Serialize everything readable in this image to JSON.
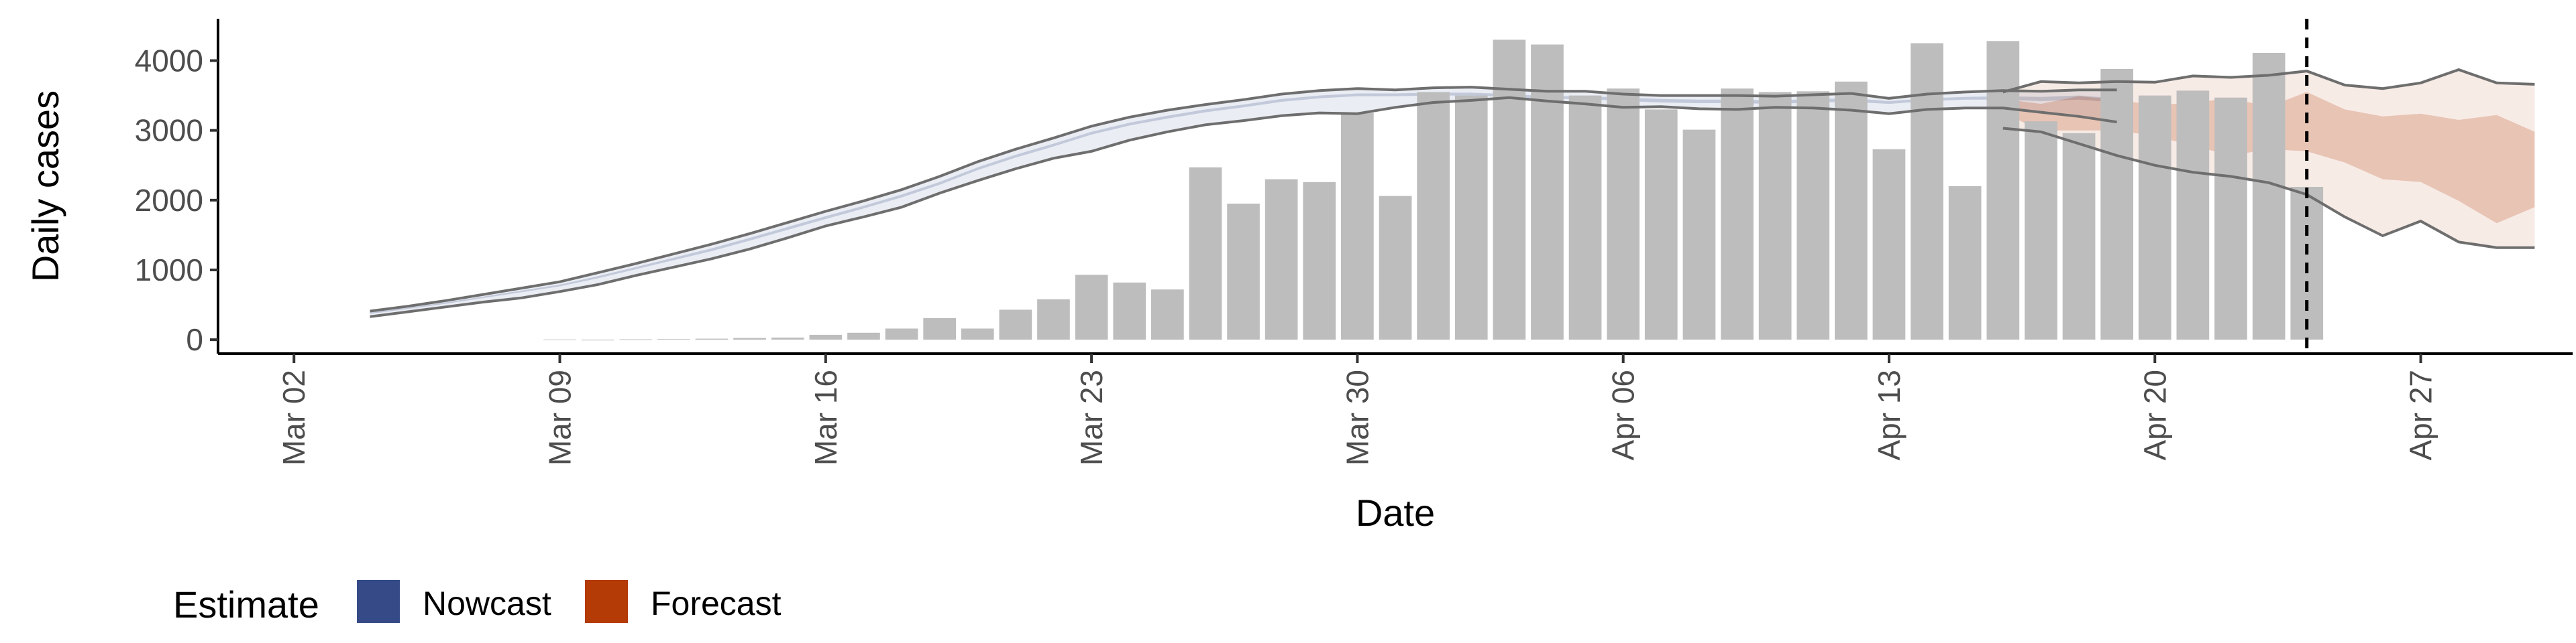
{
  "chart_data": {
    "type": "bar",
    "xlabel": "Date",
    "ylabel": "Daily cases",
    "ylim": [
      -200,
      4600
    ],
    "y_ticks": [
      0,
      1000,
      2000,
      3000,
      4000
    ],
    "x_ticks": [
      "Mar 02",
      "Mar 09",
      "Mar 16",
      "Mar 23",
      "Mar 30",
      "Apr 06",
      "Apr 13",
      "Apr 20",
      "Apr 27"
    ],
    "x_range": [
      "2020-02-29",
      "2020-05-01"
    ],
    "bar_color": "#bdbdbd",
    "reported_cases": {
      "start_date": "2020-03-09",
      "values": [
        2,
        0,
        5,
        10,
        15,
        25,
        30,
        70,
        100,
        160,
        310,
        160,
        430,
        580,
        930,
        820,
        720,
        2470,
        1950,
        2300,
        2260,
        3250,
        2060,
        3550,
        3500,
        4300,
        4230,
        3500,
        3600,
        3300,
        3010,
        3600,
        3550,
        3560,
        3700,
        2730,
        4250,
        2200,
        4280,
        3130,
        2960,
        3880,
        3500,
        3570,
        3470,
        4110,
        2190
      ]
    },
    "series": [
      {
        "name": "Nowcast",
        "color": "#354a86",
        "start_date": "2020-03-04",
        "upper": [
          410,
          480,
          560,
          650,
          740,
          830,
          960,
          1090,
          1230,
          1370,
          1520,
          1680,
          1840,
          1990,
          2150,
          2340,
          2550,
          2730,
          2890,
          3060,
          3190,
          3290,
          3370,
          3440,
          3520,
          3570,
          3600,
          3580,
          3610,
          3620,
          3590,
          3560,
          3560,
          3520,
          3500,
          3500,
          3500,
          3490,
          3510,
          3530,
          3460,
          3520,
          3550,
          3570,
          3560,
          3580,
          3580
        ],
        "inner_upper": [
          390,
          460,
          535,
          620,
          705,
          790,
          910,
          1040,
          1175,
          1310,
          1460,
          1615,
          1770,
          1920,
          2080,
          2260,
          2470,
          2650,
          2810,
          2980,
          3110,
          3210,
          3300,
          3370,
          3450,
          3500,
          3530,
          3530,
          3540,
          3540,
          3520,
          3490,
          3490,
          3470,
          3450,
          3440,
          3440,
          3430,
          3450,
          3460,
          3420,
          3460,
          3480,
          3490,
          3480,
          3500,
          3460
        ],
        "inner_lower": [
          370,
          440,
          515,
          600,
          680,
          765,
          880,
          1010,
          1140,
          1270,
          1420,
          1575,
          1730,
          1880,
          2040,
          2220,
          2430,
          2610,
          2770,
          2940,
          3070,
          3170,
          3260,
          3330,
          3410,
          3460,
          3490,
          3490,
          3500,
          3500,
          3480,
          3450,
          3450,
          3420,
          3400,
          3390,
          3390,
          3380,
          3400,
          3410,
          3380,
          3420,
          3440,
          3440,
          3420,
          3440,
          3400
        ],
        "lower": [
          330,
          400,
          470,
          540,
          600,
          690,
          790,
          920,
          1040,
          1160,
          1300,
          1460,
          1630,
          1760,
          1900,
          2100,
          2280,
          2450,
          2600,
          2700,
          2860,
          2980,
          3080,
          3140,
          3210,
          3250,
          3240,
          3330,
          3400,
          3430,
          3470,
          3420,
          3380,
          3330,
          3340,
          3310,
          3300,
          3330,
          3320,
          3290,
          3240,
          3300,
          3320,
          3320,
          3260,
          3200,
          3120
        ]
      },
      {
        "name": "Forecast",
        "color": "#b43a06",
        "start_date": "2020-04-16",
        "upper": [
          3550,
          3700,
          3680,
          3700,
          3690,
          3780,
          3760,
          3790,
          3850,
          3650,
          3600,
          3680,
          3870,
          3680,
          3660
        ],
        "inner_upper": [
          3450,
          3380,
          3490,
          3440,
          3360,
          3400,
          3460,
          3340,
          3550,
          3300,
          3200,
          3240,
          3150,
          3220,
          2980
        ],
        "inner_lower": [
          3250,
          3000,
          3000,
          3000,
          2920,
          2780,
          2640,
          2730,
          2700,
          2540,
          2300,
          2260,
          1990,
          1670,
          1900
        ],
        "lower": [
          3030,
          2980,
          2810,
          2640,
          2500,
          2400,
          2340,
          2250,
          2080,
          1760,
          1490,
          1700,
          1400,
          1320,
          1320
        ]
      }
    ],
    "forecast_date": "2020-04-24",
    "legend": {
      "title": "Estimate",
      "position": "bottom-left",
      "entries": [
        {
          "label": "Nowcast",
          "color": "#354a86"
        },
        {
          "label": "Forecast",
          "color": "#b43a06"
        }
      ]
    }
  }
}
